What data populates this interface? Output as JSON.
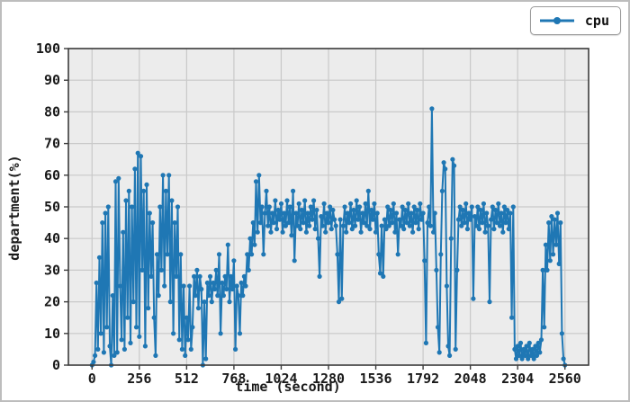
{
  "figure": {
    "background": "#ffffff",
    "outer_border_color": "#bdbdbd",
    "plot_bg": "#ececec",
    "grid_color": "#c9c9c9",
    "spine_color": "#3c3c3c",
    "tick_text_color": "#1a1a1a"
  },
  "chart_data": {
    "type": "line",
    "title": "",
    "xlabel": "time (second)",
    "ylabel": "department(%)",
    "xlim": [
      -128,
      2688
    ],
    "ylim": [
      0,
      100
    ],
    "xticks": [
      0,
      256,
      512,
      768,
      1024,
      1280,
      1536,
      1792,
      2048,
      2304,
      2560
    ],
    "yticks": [
      0,
      10,
      20,
      30,
      40,
      50,
      60,
      70,
      80,
      90,
      100
    ],
    "grid": true,
    "legend_position": "top-right-outside",
    "series": [
      {
        "name": "cpu",
        "color": "#1f77b4",
        "marker": "circle",
        "marker_radius": 2.6,
        "line_width": 2,
        "x_start": 0,
        "x_step": 8,
        "values": [
          0,
          1,
          3,
          26,
          5,
          34,
          10,
          45,
          4,
          48,
          12,
          50,
          6,
          0,
          22,
          3,
          58,
          4,
          59,
          25,
          8,
          42,
          5,
          52,
          15,
          55,
          7,
          50,
          20,
          62,
          12,
          67,
          9,
          66,
          30,
          55,
          6,
          57,
          18,
          48,
          28,
          45,
          15,
          3,
          35,
          22,
          50,
          30,
          60,
          25,
          55,
          35,
          60,
          20,
          52,
          10,
          45,
          28,
          50,
          8,
          35,
          5,
          25,
          3,
          15,
          8,
          25,
          5,
          12,
          28,
          22,
          30,
          18,
          28,
          24,
          0,
          20,
          2,
          26,
          22,
          28,
          20,
          26,
          24,
          30,
          22,
          35,
          10,
          26,
          22,
          28,
          24,
          38,
          20,
          28,
          24,
          33,
          5,
          25,
          22,
          10,
          26,
          22,
          28,
          25,
          35,
          30,
          40,
          35,
          45,
          38,
          58,
          42,
          60,
          45,
          50,
          35,
          48,
          55,
          44,
          50,
          42,
          48,
          45,
          52,
          43,
          49,
          46,
          51,
          42,
          48,
          44,
          52,
          45,
          50,
          41,
          55,
          33,
          48,
          44,
          51,
          43,
          49,
          45,
          52,
          42,
          48,
          44,
          50,
          46,
          52,
          43,
          49,
          40,
          28,
          47,
          44,
          51,
          42,
          48,
          45,
          50,
          43,
          49,
          46,
          44,
          35,
          20,
          46,
          21,
          44,
          50,
          42,
          48,
          45,
          51,
          43,
          49,
          44,
          52,
          46,
          50,
          42,
          48,
          45,
          51,
          44,
          55,
          43,
          49,
          46,
          51,
          42,
          48,
          35,
          29,
          44,
          28,
          46,
          43,
          50,
          44,
          49,
          45,
          51,
          42,
          48,
          35,
          46,
          44,
          50,
          43,
          49,
          45,
          51,
          44,
          48,
          42,
          50,
          45,
          49,
          43,
          51,
          46,
          48,
          33,
          7,
          45,
          50,
          44,
          81,
          42,
          48,
          30,
          12,
          4,
          35,
          55,
          64,
          62,
          25,
          6,
          3,
          40,
          65,
          63,
          5,
          30,
          46,
          50,
          44,
          49,
          45,
          51,
          43,
          48,
          46,
          50,
          21,
          47,
          44,
          50,
          43,
          49,
          45,
          51,
          42,
          48,
          44,
          20,
          46,
          50,
          43,
          49,
          45,
          51,
          44,
          48,
          42,
          50,
          45,
          49,
          43,
          48,
          15,
          50,
          5,
          2,
          6,
          3,
          7,
          2,
          5,
          3,
          6,
          2,
          7,
          3,
          5,
          2,
          6,
          3,
          7,
          4,
          8,
          30,
          12,
          38,
          30,
          45,
          33,
          47,
          35,
          46,
          38,
          48,
          32,
          45,
          10,
          2,
          0
        ]
      }
    ]
  }
}
